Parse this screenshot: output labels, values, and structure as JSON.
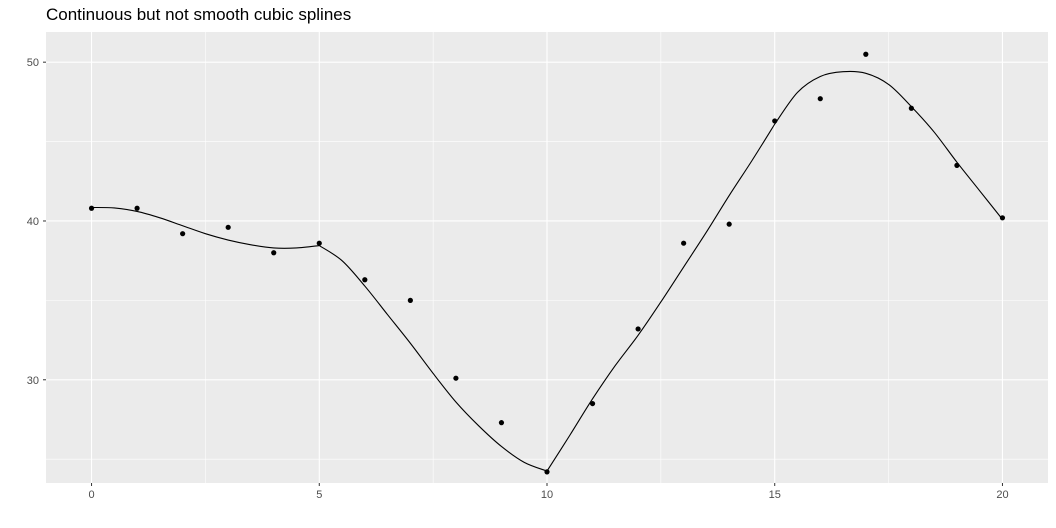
{
  "chart_data": {
    "type": "scatter",
    "title": "Continuous but not smooth cubic splines",
    "xlabel": "",
    "ylabel": "",
    "xlim": [
      -1.0,
      21.0
    ],
    "ylim": [
      23.5,
      51.9
    ],
    "x_ticks": [
      0,
      5,
      10,
      15,
      20
    ],
    "y_ticks": [
      30,
      40,
      50
    ],
    "grid": true,
    "colors": {
      "panel_background": "#ebebeb",
      "grid_line": "#ffffff",
      "points": "#000000",
      "curve": "#000000",
      "tick_text": "#4d4d4d"
    },
    "points": {
      "x": [
        0,
        1,
        2,
        3,
        4,
        5,
        6,
        7,
        8,
        9,
        10,
        11,
        12,
        13,
        14,
        15,
        16,
        17,
        18,
        19,
        20
      ],
      "y": [
        40.8,
        40.8,
        39.2,
        39.6,
        38.0,
        38.6,
        36.3,
        35.0,
        30.1,
        27.3,
        24.2,
        28.5,
        33.2,
        38.6,
        39.8,
        46.3,
        47.7,
        50.5,
        47.1,
        43.5,
        40.2
      ]
    },
    "curve": {
      "x": [
        0,
        0.5,
        1,
        1.5,
        2,
        2.5,
        3,
        3.5,
        4,
        4.5,
        5,
        5.5,
        6,
        6.5,
        7,
        7.5,
        8,
        8.5,
        9,
        9.5,
        10,
        10.5,
        11,
        11.5,
        12,
        12.5,
        13,
        13.5,
        14,
        14.5,
        15,
        15.5,
        16,
        16.5,
        17,
        17.5,
        18,
        18.5,
        19,
        19.5,
        20
      ],
      "y": [
        40.85,
        40.82,
        40.6,
        40.2,
        39.7,
        39.2,
        38.8,
        38.5,
        38.3,
        38.3,
        38.45,
        37.5,
        35.9,
        34.1,
        32.3,
        30.4,
        28.6,
        27.1,
        25.8,
        24.8,
        24.25,
        26.5,
        28.8,
        30.9,
        32.8,
        34.9,
        37.1,
        39.3,
        41.6,
        43.8,
        46.1,
        48.1,
        49.1,
        49.4,
        49.3,
        48.6,
        47.2,
        45.6,
        43.7,
        41.9,
        40.1
      ]
    }
  }
}
